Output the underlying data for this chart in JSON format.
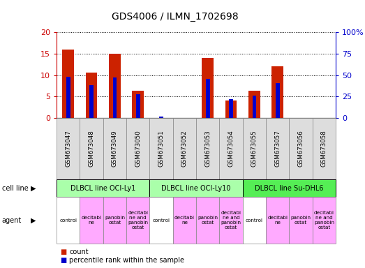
{
  "title": "GDS4006 / ILMN_1702698",
  "samples": [
    "GSM673047",
    "GSM673048",
    "GSM673049",
    "GSM673050",
    "GSM673051",
    "GSM673052",
    "GSM673053",
    "GSM673054",
    "GSM673055",
    "GSM673057",
    "GSM673056",
    "GSM673058"
  ],
  "count_values": [
    16,
    10.5,
    15,
    6.3,
    0,
    0,
    14,
    4,
    6.3,
    12,
    0,
    0
  ],
  "percentile_values": [
    9.6,
    7.6,
    9.5,
    5.6,
    0.4,
    0,
    9.1,
    4.4,
    5.2,
    8.2,
    0,
    0
  ],
  "ylim_left": [
    0,
    20
  ],
  "ylim_right": [
    0,
    100
  ],
  "yticks_left": [
    0,
    5,
    10,
    15,
    20
  ],
  "yticks_right": [
    0,
    25,
    50,
    75,
    100
  ],
  "ytick_labels_left": [
    "0",
    "5",
    "10",
    "15",
    "20"
  ],
  "ytick_labels_right": [
    "0",
    "25",
    "50",
    "75",
    "100%"
  ],
  "cell_line_groups": [
    {
      "label": "DLBCL line OCI-Ly1",
      "start": 0,
      "end": 4
    },
    {
      "label": "DLBCL line OCI-Ly10",
      "start": 4,
      "end": 8
    },
    {
      "label": "DLBCL line Su-DHL6",
      "start": 8,
      "end": 12
    }
  ],
  "cell_line_colors": [
    "#aaffaa",
    "#aaffaa",
    "#55ee55"
  ],
  "agent_labels": [
    "control",
    "decitabi\nne",
    "panobin\nostat",
    "decitabi\nne and\npanobin\nostat",
    "control",
    "decitabi\nne",
    "panobin\nostat",
    "decitabi\nne and\npanobin\nostat",
    "control",
    "decitabi\nne",
    "panobin\nostat",
    "decitabi\nne and\npanobin\nostat"
  ],
  "agent_colors": [
    "#ffffff",
    "#ffaaff",
    "#ffaaff",
    "#ffaaff",
    "#ffffff",
    "#ffaaff",
    "#ffaaff",
    "#ffaaff",
    "#ffffff",
    "#ffaaff",
    "#ffaaff",
    "#ffaaff"
  ],
  "tick_color_left": "#cc0000",
  "tick_color_right": "#0000cc",
  "bar_color_red": "#cc2200",
  "bar_color_blue": "#0000cc",
  "legend_count_color": "#cc2200",
  "legend_pct_color": "#0000cc",
  "sample_bg": "#dddddd",
  "left_label_color": "#000000"
}
